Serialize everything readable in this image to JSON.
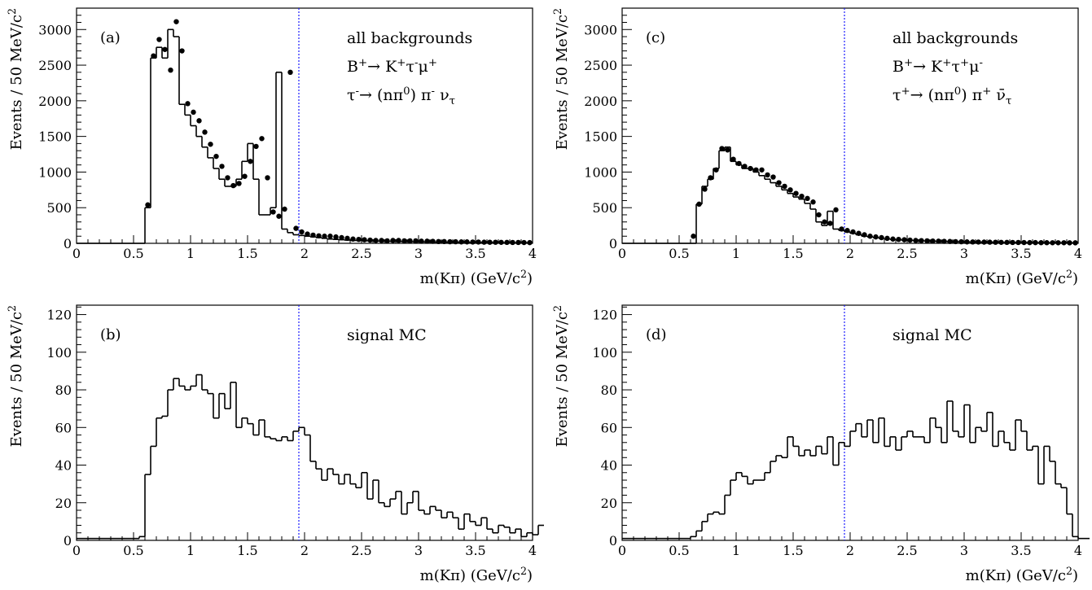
{
  "chart_data": [
    {
      "id": "a",
      "type": "bar",
      "panel_label": "(a)",
      "annotations": [
        "all backgrounds",
        "B⁺→ K⁺τ⁻μ⁺",
        "τ⁻→ (nπ⁰) π⁻ ν_τ"
      ],
      "xlabel": "m(Kπ) (GeV/c²)",
      "ylabel": "Events / 50 MeV/c²",
      "xlim": [
        0,
        4
      ],
      "ylim": [
        0,
        3300
      ],
      "xticks": [
        0,
        0.5,
        1,
        1.5,
        2,
        2.5,
        3,
        3.5,
        4
      ],
      "xtick_labels": [
        "0",
        "0.5",
        "1",
        "1.5",
        "2",
        "2.5",
        "3",
        "3.5",
        "4"
      ],
      "yticks": [
        0,
        500,
        1000,
        1500,
        2000,
        2500,
        3000
      ],
      "ytick_labels": [
        "0",
        "500",
        "1000",
        "1500",
        "2000",
        "2500",
        "3000"
      ],
      "vertical_line_x": 1.95,
      "bin_width": 0.05,
      "series": [
        {
          "kind": "histogram",
          "x_start": 0,
          "values": [
            0,
            0,
            0,
            0,
            0,
            0,
            0,
            0,
            0,
            0,
            0,
            0,
            500,
            2600,
            2750,
            2600,
            3000,
            2900,
            1950,
            1800,
            1650,
            1500,
            1350,
            1200,
            1050,
            900,
            800,
            800,
            900,
            1150,
            1400,
            900,
            400,
            400,
            500,
            2400,
            200,
            150,
            120,
            110,
            100,
            90,
            80,
            70,
            60,
            55,
            50,
            45,
            40,
            40,
            35,
            35,
            30,
            30,
            28,
            27,
            25,
            24,
            22,
            20,
            20,
            18,
            17,
            16,
            15,
            15,
            14,
            13,
            12,
            12,
            11,
            10,
            10,
            9,
            9,
            8,
            8,
            8,
            7,
            7
          ]
        },
        {
          "kind": "points",
          "x_start": 0.625,
          "values": [
            540,
            2630,
            2860,
            2720,
            2430,
            3110,
            2700,
            1960,
            1840,
            1720,
            1560,
            1390,
            1220,
            1080,
            920,
            810,
            840,
            940,
            1150,
            1360,
            1470,
            920,
            440,
            380,
            480,
            2400,
            210,
            160,
            130,
            115,
            105,
            100,
            100,
            90,
            80,
            70,
            60,
            55,
            50,
            45,
            40,
            40,
            35,
            40,
            40,
            35,
            35,
            35,
            30,
            30,
            28,
            25,
            25,
            22,
            22,
            20,
            20,
            18,
            18,
            16,
            15,
            15,
            14,
            13,
            12,
            12,
            11,
            10
          ]
        }
      ]
    },
    {
      "id": "c",
      "type": "bar",
      "panel_label": "(c)",
      "annotations": [
        "all backgrounds",
        "B⁺→ K⁺τ⁺μ⁻",
        "τ⁺→ (nπ⁰) π⁺ ν̄_τ"
      ],
      "xlabel": "m(Kπ) (GeV/c²)",
      "ylabel": "Events / 50 MeV/c²",
      "xlim": [
        0,
        4
      ],
      "ylim": [
        0,
        3300
      ],
      "xticks": [
        0,
        0.5,
        1,
        1.5,
        2,
        2.5,
        3,
        3.5,
        4
      ],
      "xtick_labels": [
        "0",
        "0.5",
        "1",
        "1.5",
        "2",
        "2.5",
        "3",
        "3.5",
        "4"
      ],
      "yticks": [
        0,
        500,
        1000,
        1500,
        2000,
        2500,
        3000
      ],
      "ytick_labels": [
        "0",
        "500",
        "1000",
        "1500",
        "2000",
        "2500",
        "3000"
      ],
      "vertical_line_x": 1.95,
      "bin_width": 0.05,
      "series": [
        {
          "kind": "histogram",
          "x_start": 0,
          "values": [
            0,
            0,
            0,
            0,
            0,
            0,
            0,
            0,
            0,
            0,
            0,
            0,
            0,
            550,
            800,
            900,
            1050,
            1300,
            1350,
            1150,
            1100,
            1050,
            1050,
            1000,
            950,
            900,
            850,
            800,
            750,
            700,
            650,
            620,
            560,
            480,
            300,
            250,
            450,
            200,
            180,
            160,
            140,
            120,
            100,
            90,
            80,
            70,
            60,
            55,
            50,
            45,
            40,
            38,
            35,
            32,
            30,
            28,
            26,
            24,
            22,
            20,
            19,
            18,
            17,
            16,
            15,
            14,
            13,
            12,
            12,
            11,
            10,
            10,
            9,
            9,
            8,
            8,
            8,
            7,
            7,
            7
          ]
        },
        {
          "kind": "points",
          "x_start": 0.625,
          "values": [
            100,
            550,
            760,
            920,
            1030,
            1330,
            1310,
            1180,
            1120,
            1080,
            1050,
            1030,
            1030,
            960,
            930,
            850,
            800,
            750,
            700,
            660,
            630,
            580,
            400,
            300,
            280,
            470,
            200,
            180,
            160,
            140,
            120,
            100,
            90,
            80,
            70,
            60,
            55,
            50,
            45,
            40,
            38,
            35,
            32,
            30,
            28,
            26,
            24,
            22,
            20,
            19,
            18,
            17,
            16,
            15,
            14,
            13,
            12,
            12,
            11,
            10,
            10,
            9,
            9,
            8,
            8,
            8,
            7,
            7
          ]
        }
      ]
    },
    {
      "id": "b",
      "type": "bar",
      "panel_label": "(b)",
      "annotations": [
        "signal MC"
      ],
      "xlabel": "m(Kπ) (GeV/c²)",
      "ylabel": "Events / 50 MeV/c²",
      "xlim": [
        0,
        4
      ],
      "ylim": [
        0,
        125
      ],
      "xticks": [
        0,
        0.5,
        1,
        1.5,
        2,
        2.5,
        3,
        3.5,
        4
      ],
      "xtick_labels": [
        "0",
        "0.5",
        "1",
        "1.5",
        "2",
        "2.5",
        "3",
        "3.5",
        "4"
      ],
      "yticks": [
        0,
        20,
        40,
        60,
        80,
        100,
        120
      ],
      "ytick_labels": [
        "0",
        "20",
        "40",
        "60",
        "80",
        "100",
        "120"
      ],
      "vertical_line_x": 1.95,
      "bin_width": 0.05,
      "series": [
        {
          "kind": "histogram",
          "x_start": 0,
          "values": [
            1,
            1,
            1,
            1,
            1,
            1,
            1,
            1,
            1,
            1,
            1,
            2,
            35,
            50,
            65,
            66,
            80,
            86,
            82,
            80,
            82,
            88,
            80,
            78,
            65,
            78,
            70,
            84,
            60,
            65,
            62,
            56,
            64,
            55,
            54,
            53,
            55,
            53,
            58,
            60,
            56,
            42,
            38,
            32,
            38,
            35,
            30,
            35,
            30,
            28,
            36,
            22,
            32,
            20,
            18,
            22,
            26,
            14,
            20,
            26,
            16,
            14,
            18,
            16,
            12,
            15,
            12,
            6,
            14,
            10,
            8,
            12,
            6,
            4,
            8,
            7,
            4,
            6,
            2,
            4,
            3,
            8
          ]
        }
      ]
    },
    {
      "id": "d",
      "type": "bar",
      "panel_label": "(d)",
      "annotations": [
        "signal MC"
      ],
      "xlabel": "m(Kπ) (GeV/c²)",
      "ylabel": "Events / 50 MeV/c²",
      "xlim": [
        0,
        4
      ],
      "ylim": [
        0,
        125
      ],
      "xticks": [
        0,
        0.5,
        1,
        1.5,
        2,
        2.5,
        3,
        3.5,
        4
      ],
      "xtick_labels": [
        "0",
        "0.5",
        "1",
        "1.5",
        "2",
        "2.5",
        "3",
        "3.5",
        "4"
      ],
      "yticks": [
        0,
        20,
        40,
        60,
        80,
        100,
        120
      ],
      "ytick_labels": [
        "0",
        "20",
        "40",
        "60",
        "80",
        "100",
        "120"
      ],
      "vertical_line_x": 1.95,
      "bin_width": 0.05,
      "series": [
        {
          "kind": "histogram",
          "x_start": 0,
          "values": [
            1,
            1,
            1,
            1,
            1,
            1,
            1,
            1,
            1,
            1,
            1,
            1,
            2,
            5,
            10,
            14,
            15,
            14,
            24,
            32,
            36,
            34,
            30,
            32,
            32,
            36,
            42,
            45,
            44,
            55,
            50,
            45,
            48,
            45,
            50,
            46,
            55,
            40,
            52,
            50,
            58,
            62,
            55,
            64,
            52,
            65,
            50,
            55,
            48,
            55,
            58,
            55,
            55,
            52,
            65,
            60,
            52,
            74,
            58,
            55,
            72,
            52,
            60,
            58,
            68,
            50,
            58,
            52,
            48,
            64,
            58,
            48,
            50,
            30,
            50,
            42,
            30,
            28,
            14,
            2,
            1,
            1
          ]
        }
      ]
    }
  ]
}
